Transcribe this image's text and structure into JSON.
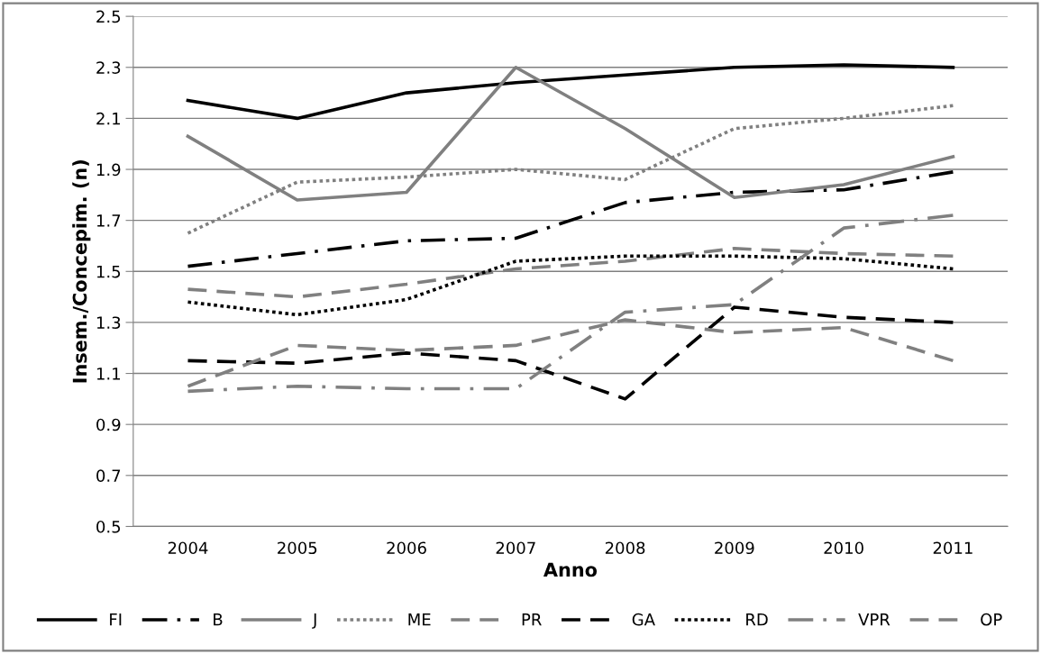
{
  "chart_data": {
    "type": "line",
    "xlabel": "Anno",
    "ylabel": "Insem./Concepim. (n)",
    "categories": [
      "2004",
      "2005",
      "2006",
      "2007",
      "2008",
      "2009",
      "2010",
      "2011"
    ],
    "ylim": [
      0.5,
      2.5
    ],
    "yticks": [
      {
        "value": 0.5,
        "label": "0.5"
      },
      {
        "value": 0.7,
        "label": "0.7"
      },
      {
        "value": 0.9,
        "label": "0.9"
      },
      {
        "value": 1.1,
        "label": "1.1"
      },
      {
        "value": 1.3,
        "label": "1.3"
      },
      {
        "value": 1.5,
        "label": "1.5"
      },
      {
        "value": 1.7,
        "label": "1.7"
      },
      {
        "value": 1.9,
        "label": "1.9"
      },
      {
        "value": 2.1,
        "label": "2.1"
      },
      {
        "value": 2.3,
        "label": "2.3"
      },
      {
        "value": 2.5,
        "label": "2.5"
      }
    ],
    "grid": "y",
    "legend": "bottom",
    "series": [
      {
        "name": "FI",
        "color": "#000000",
        "line_style": "solid",
        "values": [
          2.17,
          2.1,
          2.2,
          2.24,
          2.27,
          2.3,
          2.31,
          2.3
        ]
      },
      {
        "name": "B",
        "color": "#000000",
        "line_style": "dashdot",
        "values": [
          1.52,
          1.57,
          1.62,
          1.63,
          1.77,
          1.81,
          1.82,
          1.89
        ]
      },
      {
        "name": "J",
        "color": "#808080",
        "line_style": "solid",
        "values": [
          2.03,
          1.78,
          1.81,
          2.3,
          2.06,
          1.79,
          1.84,
          1.95
        ]
      },
      {
        "name": "ME",
        "color": "#808080",
        "line_style": "dotted",
        "values": [
          1.65,
          1.85,
          1.87,
          1.9,
          1.86,
          2.06,
          2.1,
          2.15
        ]
      },
      {
        "name": "PR",
        "color": "#808080",
        "line_style": "dashed",
        "values": [
          1.43,
          1.4,
          1.45,
          1.51,
          1.54,
          1.59,
          1.57,
          1.56
        ]
      },
      {
        "name": "GA",
        "color": "#000000",
        "line_style": "dashed",
        "values": [
          1.15,
          1.14,
          1.18,
          1.15,
          1.0,
          1.36,
          1.32,
          1.3
        ]
      },
      {
        "name": "RD",
        "color": "#000000",
        "line_style": "dotted",
        "values": [
          1.38,
          1.33,
          1.39,
          1.54,
          1.56,
          1.56,
          1.55,
          1.51
        ]
      },
      {
        "name": "VPR",
        "color": "#808080",
        "line_style": "dashdot",
        "values": [
          1.03,
          1.05,
          1.04,
          1.04,
          1.34,
          1.37,
          1.67,
          1.72
        ]
      },
      {
        "name": "OP",
        "color": "#808080",
        "line_style": "dashed",
        "values": [
          1.05,
          1.21,
          1.19,
          1.21,
          1.31,
          1.26,
          1.28,
          1.15
        ]
      }
    ]
  }
}
